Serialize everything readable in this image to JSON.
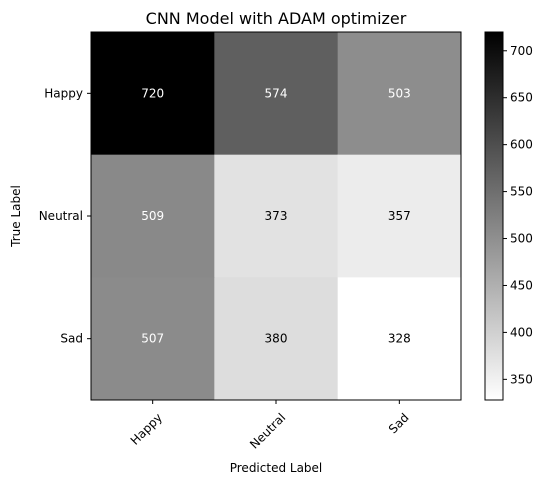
{
  "chart_data": {
    "type": "heatmap",
    "title": "CNN Model with ADAM optimizer",
    "xlabel": "Predicted Label",
    "ylabel": "True Label",
    "x_categories": [
      "Happy",
      "Neutral",
      "Sad"
    ],
    "y_categories": [
      "Happy",
      "Neutral",
      "Sad"
    ],
    "values": [
      [
        720,
        574,
        503
      ],
      [
        509,
        373,
        357
      ],
      [
        507,
        380,
        328
      ]
    ],
    "colormap": "Greys",
    "color_range": [
      328,
      720
    ],
    "colorbar_ticks": [
      350,
      400,
      450,
      500,
      550,
      600,
      650,
      700
    ],
    "label_colors": {
      "on_dark": "#ffffff",
      "on_light": "#000000"
    },
    "x_tick_rotation_deg": 45,
    "grid": false,
    "colorbar": "right"
  }
}
